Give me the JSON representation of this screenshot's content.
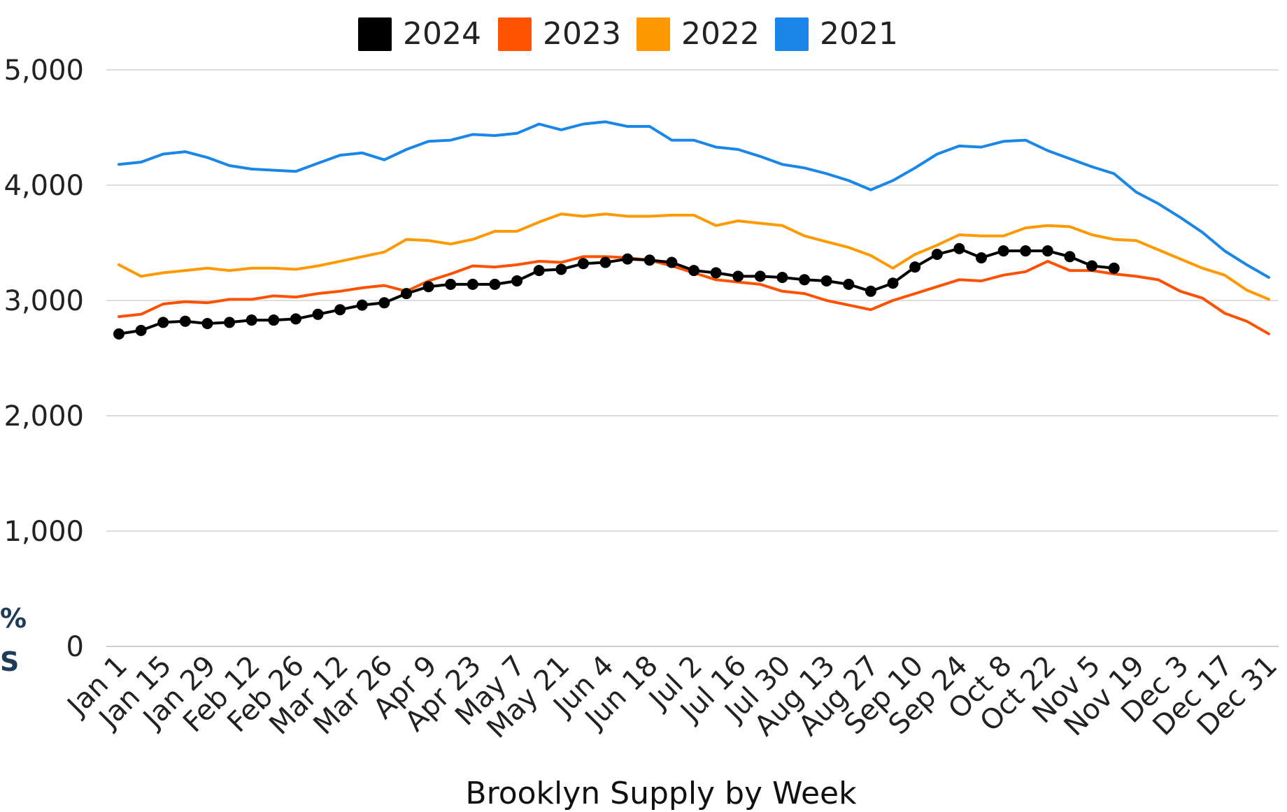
{
  "chart_data": {
    "type": "line",
    "title": "Brooklyn Supply by Week",
    "xlabel": "",
    "ylabel": "",
    "ylim": [
      0,
      5000
    ],
    "yticks": [
      0,
      1000,
      2000,
      3000,
      4000,
      5000
    ],
    "ytick_labels": [
      "0",
      "1,000",
      "2,000",
      "3,000",
      "4,000",
      "5,000"
    ],
    "xtick_labels": [
      "Jan 1",
      "Jan 15",
      "Jan 29",
      "Feb 12",
      "Feb 26",
      "Mar 12",
      "Mar 26",
      "Apr 9",
      "Apr 23",
      "May 7",
      "May 21",
      "Jun 4",
      "Jun 18",
      "Jul 2",
      "Jul 16",
      "Jul 30",
      "Aug 13",
      "Aug 27",
      "Sep 10",
      "Sep 24",
      "Oct 8",
      "Oct 22",
      "Nov 5",
      "Nov 19",
      "Dec 3",
      "Dec 17",
      "Dec 31"
    ],
    "grid": true,
    "legend_position": "top",
    "weeks": 53,
    "series": [
      {
        "name": "2024",
        "color": "#000000",
        "markers": true,
        "values": [
          2710,
          2740,
          2810,
          2820,
          2800,
          2810,
          2830,
          2830,
          2840,
          2880,
          2920,
          2960,
          2980,
          3060,
          3120,
          3140,
          3140,
          3140,
          3170,
          3260,
          3270,
          3320,
          3330,
          3360,
          3350,
          3330,
          3260,
          3240,
          3210,
          3210,
          3200,
          3180,
          3170,
          3140,
          3080,
          3150,
          3290,
          3400,
          3450,
          3370,
          3430,
          3430,
          3430,
          3380,
          3300,
          3280
        ]
      },
      {
        "name": "2023",
        "color": "#ff5200",
        "values": [
          2860,
          2880,
          2970,
          2990,
          2980,
          3010,
          3010,
          3040,
          3030,
          3060,
          3080,
          3110,
          3130,
          3080,
          3170,
          3230,
          3300,
          3290,
          3310,
          3340,
          3330,
          3380,
          3380,
          3370,
          3350,
          3300,
          3240,
          3180,
          3160,
          3140,
          3080,
          3060,
          3000,
          2960,
          2920,
          3000,
          3060,
          3120,
          3180,
          3170,
          3220,
          3250,
          3340,
          3260,
          3260,
          3230,
          3210,
          3180,
          3080,
          3020,
          2890,
          2820,
          2710
        ]
      },
      {
        "name": "2022",
        "color": "#ff9900",
        "values": [
          3310,
          3210,
          3240,
          3260,
          3280,
          3260,
          3280,
          3280,
          3270,
          3300,
          3340,
          3380,
          3420,
          3530,
          3520,
          3490,
          3530,
          3600,
          3600,
          3680,
          3750,
          3730,
          3750,
          3730,
          3730,
          3740,
          3740,
          3650,
          3690,
          3670,
          3650,
          3560,
          3510,
          3460,
          3390,
          3280,
          3400,
          3480,
          3570,
          3560,
          3560,
          3630,
          3650,
          3640,
          3570,
          3530,
          3520,
          3440,
          3360,
          3280,
          3220,
          3090,
          3010
        ]
      },
      {
        "name": "2021",
        "color": "#1a87e8",
        "values": [
          4180,
          4200,
          4270,
          4290,
          4240,
          4170,
          4140,
          4130,
          4120,
          4190,
          4260,
          4280,
          4220,
          4310,
          4380,
          4390,
          4440,
          4430,
          4450,
          4530,
          4480,
          4530,
          4550,
          4510,
          4510,
          4390,
          4390,
          4330,
          4310,
          4250,
          4180,
          4150,
          4100,
          4040,
          3960,
          4040,
          4150,
          4270,
          4340,
          4330,
          4380,
          4390,
          4300,
          4230,
          4160,
          4100,
          3940,
          3840,
          3720,
          3590,
          3430,
          3310,
          3200
        ]
      }
    ]
  },
  "edge_fragments": [
    "%",
    "S"
  ]
}
